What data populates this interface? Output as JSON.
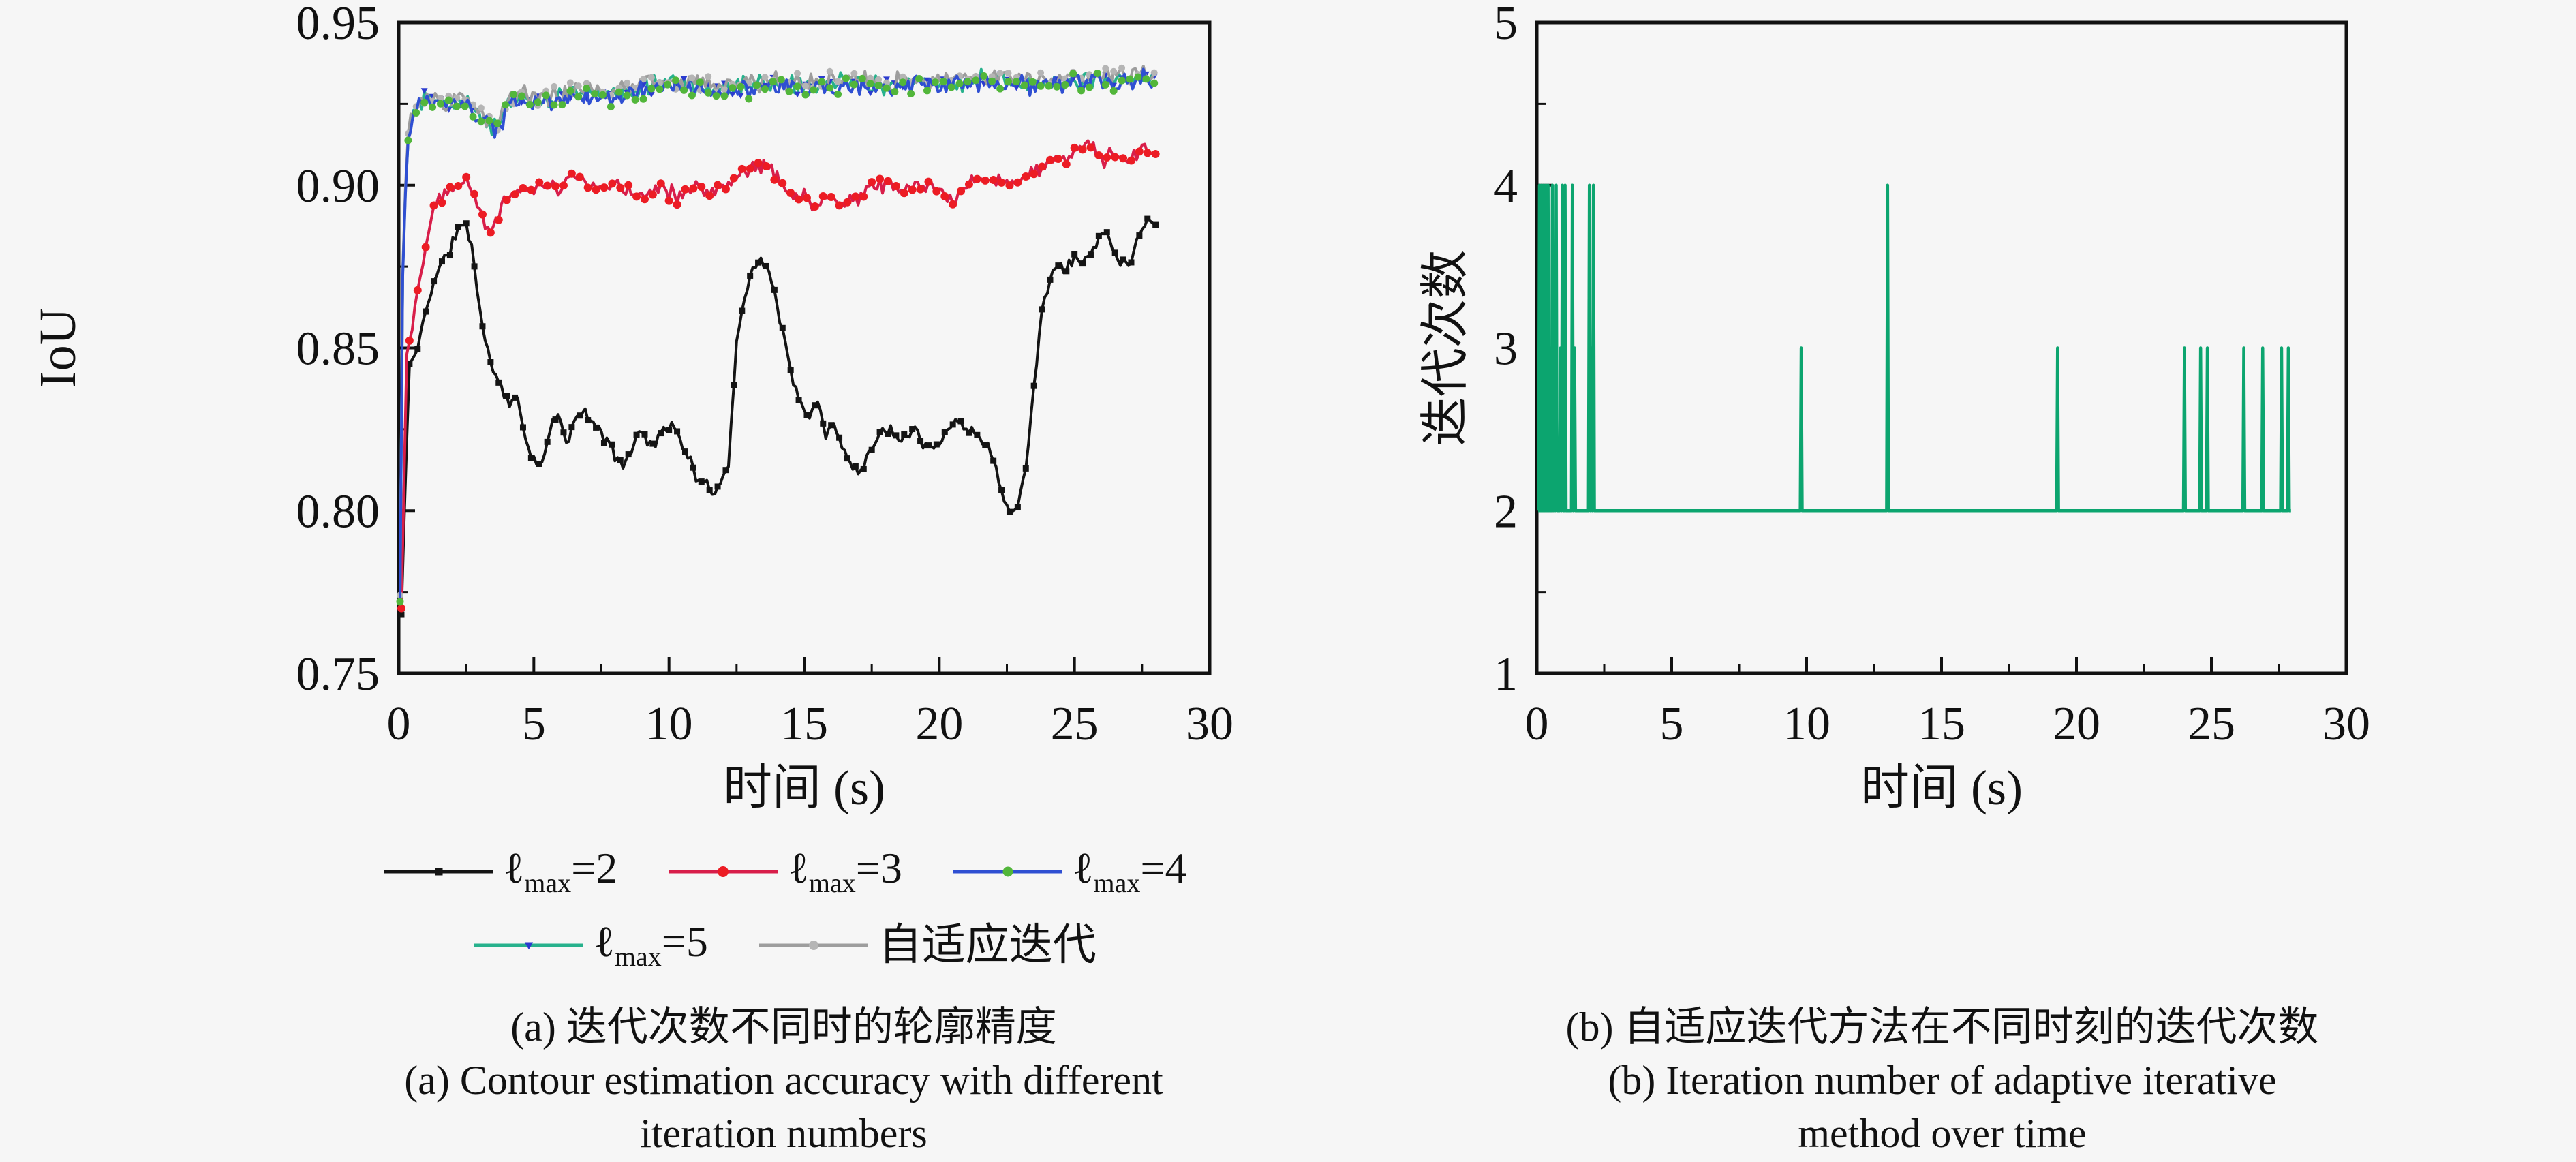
{
  "figure": {
    "background": "#f6f6f6",
    "frame_color": "#111111",
    "panel_a": {
      "ylabel": "IoU",
      "xlabel": "时间 (s)",
      "caption_zh": "(a) 迭代次数不同时的轮廓精度",
      "caption_en_line1": "(a) Contour estimation accuracy with different",
      "caption_en_line2": "iteration numbers"
    },
    "panel_b": {
      "ylabel": "迭代次数",
      "xlabel": "时间 (s)",
      "caption_zh": "(b) 自适应迭代方法在不同时刻的迭代次数",
      "caption_en_line1": "(b) Iteration number of adaptive iterative",
      "caption_en_line2": "method over time"
    }
  },
  "chart_data": [
    {
      "id": "panel_a",
      "type": "line",
      "title": "",
      "xlabel": "时间 (s)",
      "ylabel": "IoU",
      "xlim": [
        0,
        30
      ],
      "ylim": [
        0.75,
        0.95
      ],
      "xticks": [
        "0",
        "5",
        "10",
        "15",
        "20",
        "25",
        "30"
      ],
      "yticks": [
        "0.75",
        "0.80",
        "0.85",
        "0.90",
        "0.95"
      ],
      "grid": false,
      "legend_position": "below-two-rows",
      "noise_note": "series are noisy time traces; anchors are keyframe [t, IoU] points with small random jitter",
      "top_anchors": [
        [
          0.05,
          0.772
        ],
        [
          0.15,
          0.872
        ],
        [
          0.3,
          0.91
        ],
        [
          0.5,
          0.921
        ],
        [
          0.8,
          0.9245
        ],
        [
          1.2,
          0.9265
        ],
        [
          1.7,
          0.9235
        ],
        [
          2.2,
          0.9255
        ],
        [
          2.7,
          0.9225
        ],
        [
          3.2,
          0.9195
        ],
        [
          3.6,
          0.9155
        ],
        [
          4.0,
          0.9235
        ],
        [
          4.5,
          0.9265
        ],
        [
          5.0,
          0.9245
        ],
        [
          6.0,
          0.9265
        ],
        [
          7.0,
          0.9275
        ],
        [
          8.0,
          0.9265
        ],
        [
          9.0,
          0.9295
        ],
        [
          10.0,
          0.9305
        ],
        [
          11.0,
          0.9295
        ],
        [
          12.0,
          0.9285
        ],
        [
          13.0,
          0.9295
        ],
        [
          14.0,
          0.93
        ],
        [
          15.0,
          0.9295
        ],
        [
          16.0,
          0.93
        ],
        [
          17.0,
          0.931
        ],
        [
          18.0,
          0.9295
        ],
        [
          19.0,
          0.9305
        ],
        [
          20.0,
          0.93
        ],
        [
          21.0,
          0.931
        ],
        [
          22.0,
          0.9315
        ],
        [
          23.0,
          0.9305
        ],
        [
          24.0,
          0.931
        ],
        [
          25.0,
          0.9315
        ],
        [
          26.0,
          0.9315
        ],
        [
          27.0,
          0.931
        ],
        [
          27.5,
          0.9325
        ],
        [
          28.0,
          0.932
        ]
      ],
      "series": [
        {
          "id": "lmax2",
          "z": 1,
          "legend_row": 1,
          "line_color": "#141414",
          "marker": "square",
          "marker_color": "#141414",
          "marker_size": 9,
          "noise": 0.0022,
          "seed": 11,
          "label": {
            "prefix": "ℓ",
            "sub": "max",
            "suffix": "=2"
          },
          "anchors": [
            [
              0.1,
              0.768
            ],
            [
              0.25,
              0.81
            ],
            [
              0.4,
              0.845
            ],
            [
              0.6,
              0.847
            ],
            [
              0.8,
              0.854
            ],
            [
              1.0,
              0.861
            ],
            [
              1.3,
              0.871
            ],
            [
              1.6,
              0.876
            ],
            [
              1.9,
              0.88
            ],
            [
              2.2,
              0.887
            ],
            [
              2.45,
              0.888
            ],
            [
              2.7,
              0.882
            ],
            [
              2.9,
              0.868
            ],
            [
              3.2,
              0.852
            ],
            [
              3.5,
              0.843
            ],
            [
              3.8,
              0.838
            ],
            [
              4.1,
              0.833
            ],
            [
              4.4,
              0.834
            ],
            [
              4.7,
              0.822
            ],
            [
              5.0,
              0.816
            ],
            [
              5.3,
              0.813
            ],
            [
              5.6,
              0.825
            ],
            [
              5.9,
              0.83
            ],
            [
              6.2,
              0.82
            ],
            [
              6.5,
              0.828
            ],
            [
              6.8,
              0.831
            ],
            [
              7.1,
              0.827
            ],
            [
              7.4,
              0.826
            ],
            [
              7.7,
              0.821
            ],
            [
              8.0,
              0.817
            ],
            [
              8.3,
              0.815
            ],
            [
              8.6,
              0.818
            ],
            [
              8.9,
              0.825
            ],
            [
              9.2,
              0.822
            ],
            [
              9.5,
              0.82
            ],
            [
              9.8,
              0.826
            ],
            [
              10.1,
              0.826
            ],
            [
              10.4,
              0.822
            ],
            [
              10.7,
              0.817
            ],
            [
              11.0,
              0.81
            ],
            [
              11.3,
              0.808
            ],
            [
              11.6,
              0.806
            ],
            [
              11.9,
              0.808
            ],
            [
              12.2,
              0.815
            ],
            [
              12.5,
              0.852
            ],
            [
              12.8,
              0.865
            ],
            [
              13.1,
              0.875
            ],
            [
              13.4,
              0.878
            ],
            [
              13.7,
              0.873
            ],
            [
              14.0,
              0.863
            ],
            [
              14.3,
              0.852
            ],
            [
              14.6,
              0.838
            ],
            [
              14.9,
              0.833
            ],
            [
              15.2,
              0.828
            ],
            [
              15.5,
              0.835
            ],
            [
              15.8,
              0.823
            ],
            [
              16.1,
              0.826
            ],
            [
              16.4,
              0.82
            ],
            [
              16.7,
              0.815
            ],
            [
              17.0,
              0.812
            ],
            [
              17.3,
              0.816
            ],
            [
              17.6,
              0.821
            ],
            [
              17.9,
              0.824
            ],
            [
              18.2,
              0.826
            ],
            [
              18.5,
              0.822
            ],
            [
              18.8,
              0.824
            ],
            [
              19.1,
              0.826
            ],
            [
              19.4,
              0.821
            ],
            [
              19.7,
              0.819
            ],
            [
              20.0,
              0.82
            ],
            [
              20.3,
              0.825
            ],
            [
              20.6,
              0.828
            ],
            [
              20.9,
              0.826
            ],
            [
              21.2,
              0.824
            ],
            [
              21.5,
              0.823
            ],
            [
              21.8,
              0.821
            ],
            [
              22.1,
              0.812
            ],
            [
              22.4,
              0.804
            ],
            [
              22.6,
              0.8
            ],
            [
              22.9,
              0.803
            ],
            [
              23.2,
              0.812
            ],
            [
              23.5,
              0.838
            ],
            [
              23.8,
              0.862
            ],
            [
              24.1,
              0.872
            ],
            [
              24.4,
              0.875
            ],
            [
              24.7,
              0.874
            ],
            [
              25.0,
              0.878
            ],
            [
              25.3,
              0.876
            ],
            [
              25.6,
              0.879
            ],
            [
              25.9,
              0.884
            ],
            [
              26.2,
              0.886
            ],
            [
              26.5,
              0.879
            ],
            [
              26.8,
              0.876
            ],
            [
              27.1,
              0.878
            ],
            [
              27.4,
              0.884
            ],
            [
              27.7,
              0.891
            ],
            [
              28.0,
              0.887
            ]
          ]
        },
        {
          "id": "lmax3",
          "z": 2,
          "legend_row": 1,
          "line_color": "#d81e4a",
          "marker": "circle",
          "marker_color": "#ec1c24",
          "marker_size": 6,
          "noise": 0.0032,
          "seed": 22,
          "label": {
            "prefix": "ℓ",
            "sub": "max",
            "suffix": "=3"
          },
          "anchors": [
            [
              0.1,
              0.77
            ],
            [
              0.3,
              0.848
            ],
            [
              0.6,
              0.862
            ],
            [
              0.9,
              0.878
            ],
            [
              1.2,
              0.89
            ],
            [
              1.5,
              0.897
            ],
            [
              1.8,
              0.899
            ],
            [
              2.1,
              0.901
            ],
            [
              2.5,
              0.903
            ],
            [
              2.8,
              0.897
            ],
            [
              3.1,
              0.89
            ],
            [
              3.4,
              0.885
            ],
            [
              3.7,
              0.892
            ],
            [
              4.0,
              0.897
            ],
            [
              4.5,
              0.899
            ],
            [
              5.0,
              0.898
            ],
            [
              5.5,
              0.901
            ],
            [
              6.0,
              0.899
            ],
            [
              6.5,
              0.903
            ],
            [
              7.0,
              0.9
            ],
            [
              7.5,
              0.898
            ],
            [
              8.0,
              0.901
            ],
            [
              8.5,
              0.899
            ],
            [
              9.0,
              0.897
            ],
            [
              9.5,
              0.9
            ],
            [
              10.0,
              0.898
            ],
            [
              10.5,
              0.896
            ],
            [
              11.0,
              0.899
            ],
            [
              11.5,
              0.897
            ],
            [
              12.0,
              0.9
            ],
            [
              12.5,
              0.903
            ],
            [
              13.0,
              0.905
            ],
            [
              13.5,
              0.907
            ],
            [
              14.0,
              0.902
            ],
            [
              14.5,
              0.898
            ],
            [
              15.0,
              0.896
            ],
            [
              15.5,
              0.893
            ],
            [
              16.0,
              0.896
            ],
            [
              16.5,
              0.894
            ],
            [
              17.0,
              0.896
            ],
            [
              17.5,
              0.899
            ],
            [
              18.0,
              0.901
            ],
            [
              18.5,
              0.899
            ],
            [
              19.0,
              0.9
            ],
            [
              19.5,
              0.898
            ],
            [
              20.0,
              0.899
            ],
            [
              20.5,
              0.896
            ],
            [
              21.0,
              0.9
            ],
            [
              21.5,
              0.902
            ],
            [
              22.0,
              0.9
            ],
            [
              22.5,
              0.903
            ],
            [
              23.0,
              0.901
            ],
            [
              23.5,
              0.905
            ],
            [
              24.0,
              0.906
            ],
            [
              24.5,
              0.908
            ],
            [
              25.0,
              0.91
            ],
            [
              25.5,
              0.912
            ],
            [
              26.0,
              0.908
            ],
            [
              26.5,
              0.91
            ],
            [
              27.0,
              0.907
            ],
            [
              27.5,
              0.911
            ],
            [
              28.0,
              0.91
            ]
          ]
        },
        {
          "id": "lmax4",
          "z": 5,
          "legend_row": 1,
          "line_color": "#2f4fd2",
          "marker": "circle",
          "marker_color": "#52b63a",
          "marker_size": 5.5,
          "noise": 0.0035,
          "seed": 33,
          "label": {
            "prefix": "ℓ",
            "sub": "max",
            "suffix": "=4"
          },
          "anchors": "@top",
          "offset": 0.0
        },
        {
          "id": "lmax5",
          "z": 3,
          "legend_row": 2,
          "line_color": "#27b18c",
          "marker": "triangle-down",
          "marker_color": "#2b3bcf",
          "marker_size": 8,
          "noise": 0.0035,
          "seed": 44,
          "label": {
            "prefix": "ℓ",
            "sub": "max",
            "suffix": "=5"
          },
          "anchors": "@top",
          "offset": 0.001
        },
        {
          "id": "adaptive",
          "z": 4,
          "legend_row": 2,
          "line_color": "#9d9d9d",
          "marker": "circle",
          "marker_color": "#b5b5b5",
          "marker_size": 5,
          "noise": 0.0035,
          "seed": 55,
          "label": {
            "text": "自适应迭代"
          },
          "anchors": "@top",
          "offset": 0.002
        }
      ]
    },
    {
      "id": "panel_b",
      "type": "line",
      "title": "",
      "xlabel": "时间 (s)",
      "ylabel": "迭代次数",
      "xlim": [
        0,
        30
      ],
      "ylim": [
        1,
        5
      ],
      "xticks": [
        "0",
        "5",
        "10",
        "15",
        "20",
        "25",
        "30"
      ],
      "yticks": [
        "1",
        "2",
        "3",
        "4",
        "5"
      ],
      "grid": false,
      "line_color": "#0ca56f",
      "baseline": 2,
      "x_start": 0.05,
      "x_end": 27.95,
      "spike_width": 0.035,
      "spikes": [
        {
          "t": 0.1,
          "peak": 4
        },
        {
          "t": 0.18,
          "peak": 4
        },
        {
          "t": 0.22,
          "peak": 3
        },
        {
          "t": 0.26,
          "peak": 4
        },
        {
          "t": 0.34,
          "peak": 4
        },
        {
          "t": 0.42,
          "peak": 4
        },
        {
          "t": 0.48,
          "peak": 3
        },
        {
          "t": 0.58,
          "peak": 4
        },
        {
          "t": 0.65,
          "peak": 3
        },
        {
          "t": 0.72,
          "peak": 4
        },
        {
          "t": 0.88,
          "peak": 3
        },
        {
          "t": 0.95,
          "peak": 4
        },
        {
          "t": 1.05,
          "peak": 4
        },
        {
          "t": 1.32,
          "peak": 4
        },
        {
          "t": 1.4,
          "peak": 3
        },
        {
          "t": 1.95,
          "peak": 4
        },
        {
          "t": 2.02,
          "peak": 3
        },
        {
          "t": 2.1,
          "peak": 4
        },
        {
          "t": 9.8,
          "peak": 3
        },
        {
          "t": 13.0,
          "peak": 4
        },
        {
          "t": 19.3,
          "peak": 3
        },
        {
          "t": 24.0,
          "peak": 3
        },
        {
          "t": 24.6,
          "peak": 3
        },
        {
          "t": 24.85,
          "peak": 3
        },
        {
          "t": 26.2,
          "peak": 3
        },
        {
          "t": 26.9,
          "peak": 3
        },
        {
          "t": 27.6,
          "peak": 3
        },
        {
          "t": 27.85,
          "peak": 3
        }
      ]
    }
  ]
}
